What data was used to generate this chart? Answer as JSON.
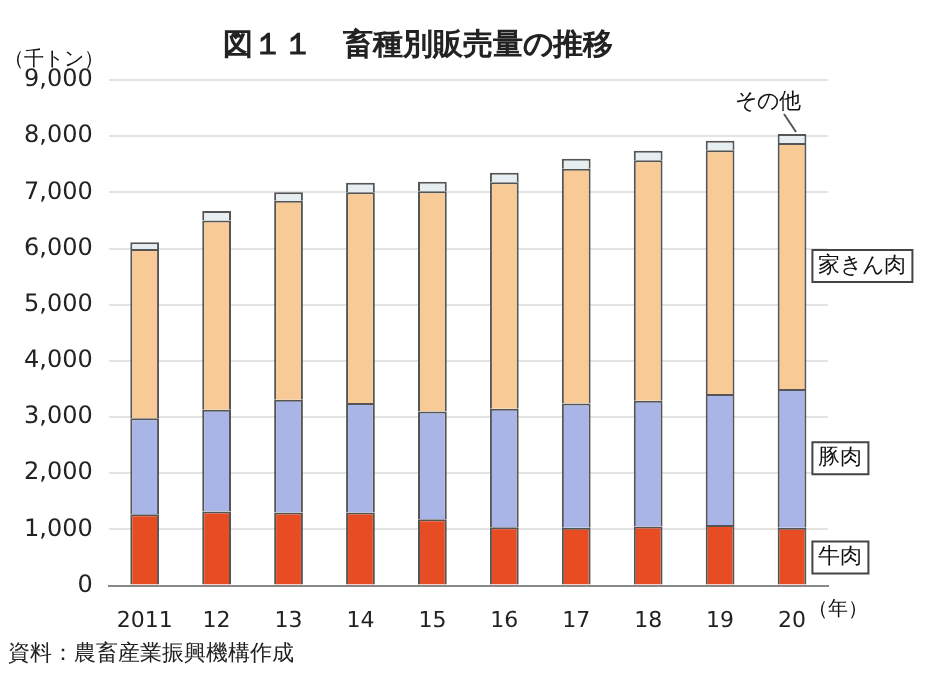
{
  "chart_data": {
    "type": "bar",
    "title": "図１１　畜種別販売量の推移",
    "ylabel": "（千トン）",
    "xlabel": "（年）",
    "categories": [
      "2011",
      "12",
      "13",
      "14",
      "15",
      "16",
      "17",
      "18",
      "19",
      "20"
    ],
    "stacked": true,
    "series": [
      {
        "name": "牛肉",
        "color": "#e84c22",
        "values": [
          1270,
          1320,
          1300,
          1300,
          1180,
          1040,
          1030,
          1050,
          1080,
          1030
        ]
      },
      {
        "name": "豚肉",
        "color": "#a9b5e6",
        "values": [
          1710,
          1810,
          2010,
          1950,
          1920,
          2110,
          2210,
          2240,
          2330,
          2470
        ]
      },
      {
        "name": "家きん肉",
        "color": "#f8cb96",
        "values": [
          3010,
          3370,
          3540,
          3750,
          3920,
          4030,
          4180,
          4280,
          4340,
          4380
        ]
      },
      {
        "name": "その他",
        "color": "#e6eef2",
        "values": [
          120,
          170,
          150,
          170,
          170,
          170,
          180,
          170,
          170,
          160
        ]
      }
    ],
    "ylim": [
      0,
      9000
    ],
    "yticks": [
      {
        "value": 0,
        "label": "0"
      },
      {
        "value": 1000,
        "label": "1,000"
      },
      {
        "value": 2000,
        "label": "2,000"
      },
      {
        "value": 3000,
        "label": "3,000"
      },
      {
        "value": 4000,
        "label": "4,000"
      },
      {
        "value": 5000,
        "label": "5,000"
      },
      {
        "value": 6000,
        "label": "6,000"
      },
      {
        "value": 7000,
        "label": "7,000"
      },
      {
        "value": 8000,
        "label": "8,000"
      },
      {
        "value": 9000,
        "label": "9,000"
      }
    ],
    "grid": "y",
    "legend": false,
    "annotations": [
      "資料：農畜産業振興機構作成"
    ]
  }
}
